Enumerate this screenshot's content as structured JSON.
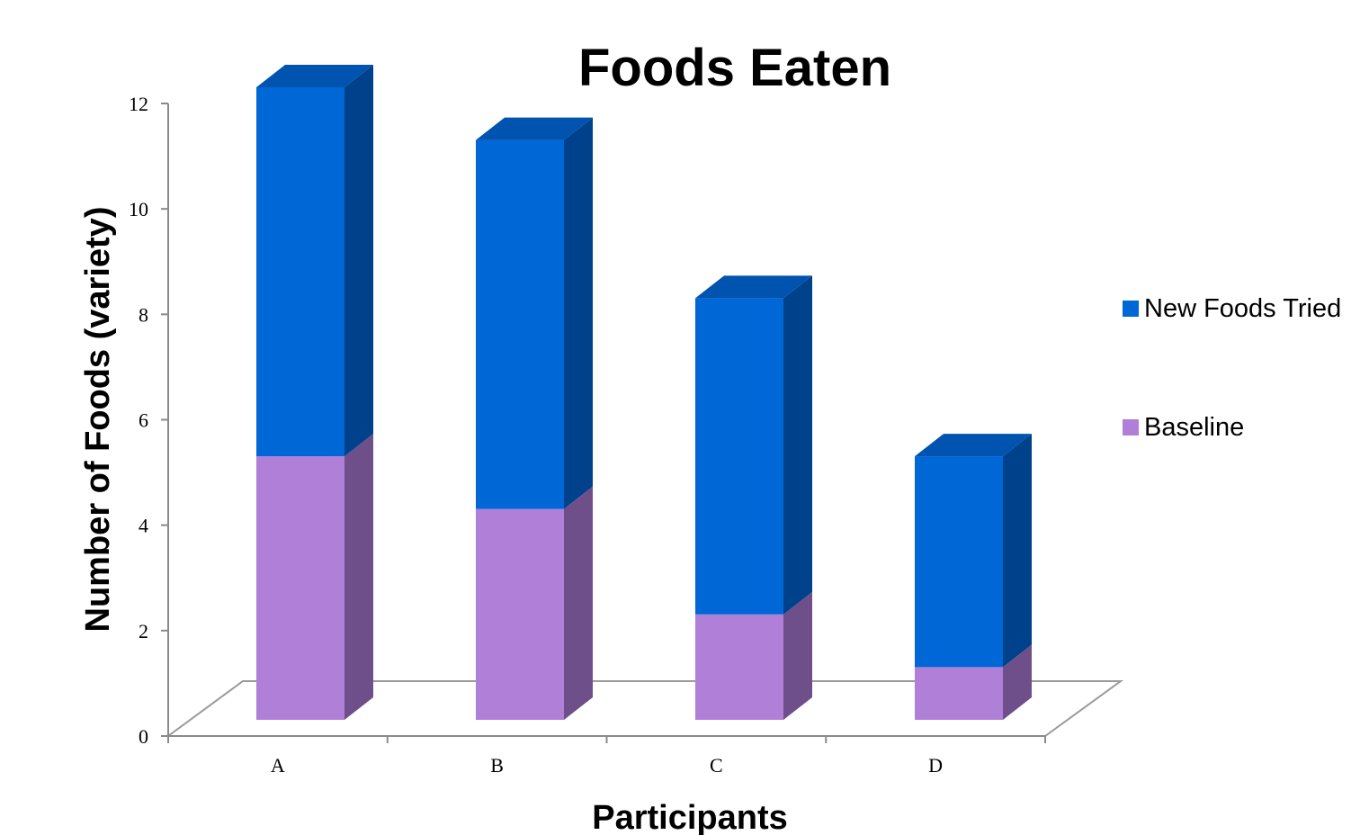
{
  "chart_data": {
    "type": "bar",
    "stacked": true,
    "three_d": true,
    "title": "Foods Eaten",
    "xlabel": "Participants",
    "ylabel": "Number of Foods (variety)",
    "categories": [
      "A",
      "B",
      "C",
      "D"
    ],
    "series": [
      {
        "name": "Baseline",
        "values": [
          5,
          4,
          2,
          1
        ],
        "color": "#b07fd8",
        "side_color": "#6f4f8a"
      },
      {
        "name": "New Foods Tried",
        "values": [
          7,
          7,
          6,
          4
        ],
        "color": "#0067d6",
        "side_color": "#00418c"
      }
    ],
    "ylim": [
      0,
      12
    ],
    "yticks": [
      0,
      2,
      4,
      6,
      8,
      10,
      12
    ],
    "legend_position": "right",
    "legend_order": [
      "New Foods Tried",
      "Baseline"
    ],
    "grid": false
  }
}
